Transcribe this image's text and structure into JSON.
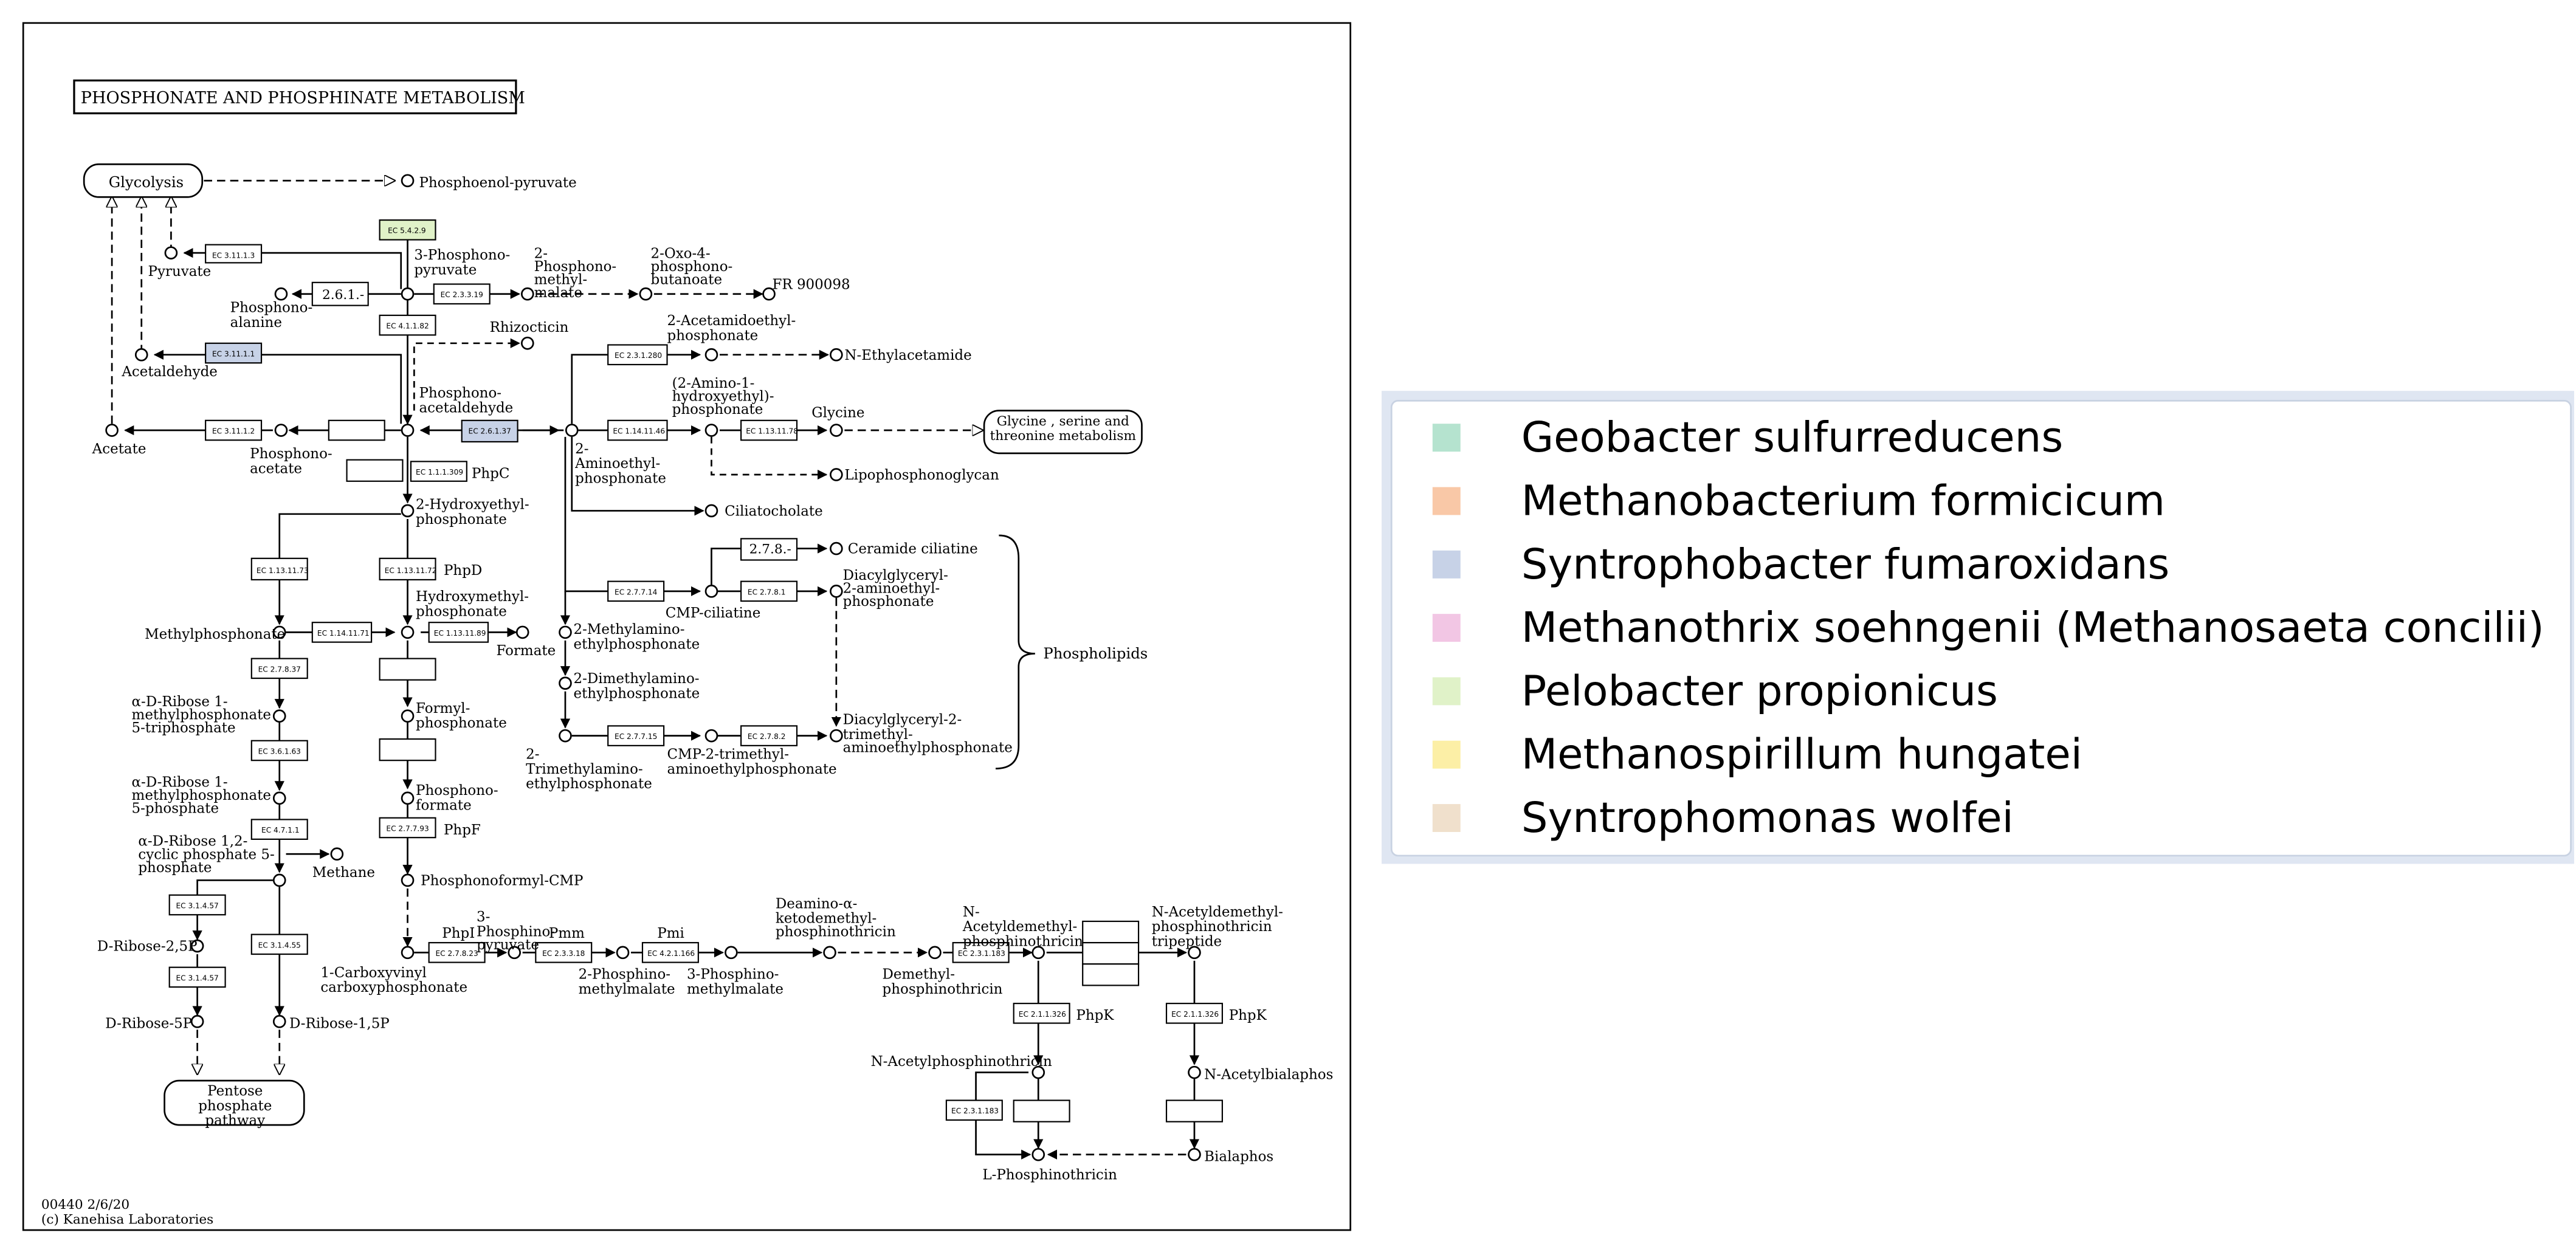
{
  "map": {
    "title": "PHOSPHONATE AND PHOSPHINATE METABOLISM",
    "map_id": "00440 2/6/20",
    "copyright": "(c) Kanehisa Laboratories",
    "pathway_links": {
      "glycolysis": "Glycolysis",
      "glycine": "Glycine , serine and threonine metabolism",
      "pentose": "Pentose phosphate pathway"
    },
    "phospholipids_label": "Phospholipids",
    "compounds": {
      "phosphoenol_pyruvate": "Phosphoenol-pyruvate",
      "pyruvate": "Pyruvate",
      "three_phosphonopyruvate": "3-Phosphono-pyruvate",
      "two_phosphonomethylmalate_top": "2-Phosphono-methyl-malate",
      "two_oxo_phosphonobutanoate": "2-Oxo-4-phosphono-butanoate",
      "fr900098": "FR 900098",
      "phosphonoalanine": "Phosphono-alanine",
      "rhizocticin": "Rhizocticin",
      "acetaldehyde": "Acetaldehyde",
      "acetate": "Acetate",
      "phosphonoacetate": "Phosphono-acetate",
      "phosphonoacetaldehyde": "Phosphono-acetaldehyde",
      "two_acetamidoethylphosphonate": "2-Acetamidoethyl-phosphonate",
      "n_ethylacetamide": "N-Ethylacetamide",
      "two_amino_hydroxyethyl": "(2-Amino-1-hydroxyethyl)-phosphonate",
      "glycine": "Glycine",
      "two_aminoethylphosphonate": "2-Aminoethyl-phosphonate",
      "lipophosphonoglycan": "Lipophosphonoglycan",
      "ciliatocholate": "Ciliatocholate",
      "ceramide_ciliatine": "Ceramide ciliatine",
      "cmp_ciliatine": "CMP-ciliatine",
      "diacylglyceryl_aminoethyl": "Diacylglyceryl-2-aminoethyl-phosphonate",
      "two_methylamino": "2-Methylamino-ethylphosphonate",
      "two_dimethylamino": "2-Dimethylamino-ethylphosphonate",
      "two_trimethylamino": "2-Trimethylamino-ethylphosphonate",
      "cmp_trimethyl": "CMP-2-trimethyl-aminoethylphosphonate",
      "diacylglyceryl_trimethyl": "Diacylglyceryl-2-trimethyl-aminoethylphosphonate",
      "two_hydroxyethylphosphonate": "2-Hydroxyethyl-phosphonate",
      "hydroxymethylphosphonate": "Hydroxymethyl-phosphonate",
      "methylphosphonate": "Methylphosphonate",
      "formate": "Formate",
      "formylphosphonate": "Formyl-phosphonate",
      "phosphonoformate": "Phosphono-formate",
      "phosphonoformyl_cmp": "Phosphonoformyl-CMP",
      "ribose_triphosphate": "α-D-Ribose 1-methylphosphonate 5-triphosphate",
      "ribose_phosphate": "α-D-Ribose 1-methylphosphonate 5-phosphate",
      "ribose_cyclic": "α-D-Ribose 1,2-cyclic phosphate 5-phosphate",
      "methane": "Methane",
      "d_ribose_25p": "D-Ribose-2,5P",
      "d_ribose_5p": "D-Ribose-5P",
      "d_ribose_15p": "D-Ribose-1,5P",
      "carboxyvinyl": "1-Carboxyvinyl carboxyphosphonate",
      "three_phosphinopyruvate": "3-Phosphino-pyruvate",
      "two_phosphinomethylmalate": "2-Phosphino-methylmalate",
      "three_phosphinomethylmalate": "3-Phosphino-methylmalate",
      "deamino": "Deamino-α-ketodemethyl-phosphinothricin",
      "demethylphosphinothricin": "Demethyl-phosphinothricin",
      "n_acetyldemethyl": "N-Acetyldemethyl-phosphinothricin",
      "n_acetyldemethyl_tripeptide": "N-Acetyldemethyl-phosphinothricin tripeptide",
      "n_acetylphosphinothricin": "N-Acetylphosphinothricin",
      "n_acetylbialaphos": "N-Acetylbialaphos",
      "l_phosphinothricin": "L-Phosphinothricin",
      "bialaphos": "Bialaphos"
    },
    "gene_labels": {
      "phpc": "PhpC",
      "phpd": "PhpD",
      "phpf": "PhpF",
      "phpi": "PhpI",
      "pmm": "Pmm",
      "pmi": "Pmi",
      "phpk1": "PhpK",
      "phpk2": "PhpK"
    },
    "ec_numbers": {
      "ec_5429": "EC 5.4.2.9",
      "ec_31113": "EC 3.11.1.3",
      "ec_26119": "EC 2.3.3.19",
      "ec_261": "2.6.1.-",
      "ec_41182": "EC 4.1.1.82",
      "ec_31111": "EC 3.11.1.1",
      "ec_31112": "EC 3.11.1.2",
      "ec_261_37": "EC 2.6.1.37",
      "ec_111309": "EC 1.1.1.309",
      "ec_231280": "EC 2.3.1.280",
      "ec_1141146": "EC 1.14.11.46",
      "ec_1131178": "EC 1.13.11.78",
      "ec_278": "2.7.8.-",
      "ec_27714": "EC 2.7.7.14",
      "ec_2781": "EC 2.7.8.1",
      "ec_27715": "EC 2.7.7.15",
      "ec_2782": "EC 2.7.8.2",
      "ec_1131173": "EC 1.13.11.73",
      "ec_1131172": "EC 1.13.11.72",
      "ec_1141171": "EC 1.14.11.71",
      "ec_1131189": "EC 1.13.11.89",
      "ec_27837": "EC 2.7.8.37",
      "ec_36163": "EC 3.6.1.63",
      "ec_4711": "EC 4.7.1.1",
      "ec_31457a": "EC 3.1.4.57",
      "ec_31455": "EC 3.1.4.55",
      "ec_31457b": "EC 3.1.4.57",
      "ec_27793": "EC 2.7.7.93",
      "ec_27823": "EC 2.7.8.23",
      "ec_23318": "EC 2.3.3.18",
      "ec_421166": "EC 4.2.1.166",
      "ec_231183a": "EC 2.3.1.183",
      "ec_211326a": "EC 2.1.1.326",
      "ec_211326b": "EC 2.1.1.326",
      "ec_231183b": "EC 2.3.1.183"
    },
    "highlight_colors": {
      "green": "#e0f2c8",
      "blue": "#c7d2e7"
    }
  },
  "legend": {
    "items": [
      {
        "label": "Geobacter sulfurreducens",
        "color": "#b5e3cf"
      },
      {
        "label": "Methanobacterium formicicum",
        "color": "#f9c8a7"
      },
      {
        "label": "Syntrophobacter fumaroxidans",
        "color": "#c7d2e7"
      },
      {
        "label": "Methanothrix soehngenii (Methanosaeta concilii)",
        "color": "#f2c6e4"
      },
      {
        "label": "Pelobacter propionicus",
        "color": "#e0f2c8"
      },
      {
        "label": "Methanospirillum hungatei",
        "color": "#fcefa6"
      },
      {
        "label": "Syntrophomonas wolfei",
        "color": "#f0e0cc"
      }
    ]
  }
}
